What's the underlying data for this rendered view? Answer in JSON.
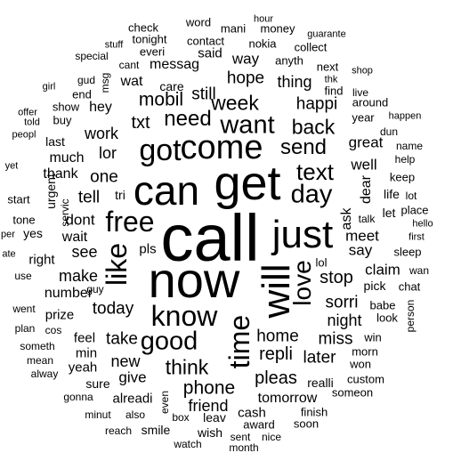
{
  "words": [
    {
      "text": "call",
      "size": 1
    },
    {
      "text": "now",
      "size": 0.82
    },
    {
      "text": "get",
      "size": 0.78
    },
    {
      "text": "can",
      "size": 0.72
    },
    {
      "text": "just",
      "size": 0.6
    },
    {
      "text": "will",
      "size": 0.58
    },
    {
      "text": "come",
      "size": 0.56
    },
    {
      "text": "got",
      "size": 0.48
    },
    {
      "text": "know",
      "size": 0.48
    },
    {
      "text": "free",
      "size": 0.46
    },
    {
      "text": "like",
      "size": 0.46
    },
    {
      "text": "time",
      "size": 0.46
    },
    {
      "text": "good",
      "size": 0.42
    },
    {
      "text": "want",
      "size": 0.42
    },
    {
      "text": "day",
      "size": 0.42
    },
    {
      "text": "love",
      "size": 0.42
    },
    {
      "text": "text",
      "size": 0.4
    },
    {
      "text": "send",
      "size": 0.36
    },
    {
      "text": "need",
      "size": 0.34
    },
    {
      "text": "week",
      "size": 0.34
    },
    {
      "text": "back",
      "size": 0.34
    },
    {
      "text": "think",
      "size": 0.34
    },
    {
      "text": "phone",
      "size": 0.32
    },
    {
      "text": "mobil",
      "size": 0.3
    },
    {
      "text": "txt",
      "size": 0.3
    },
    {
      "text": "stop",
      "size": 0.3
    },
    {
      "text": "repli",
      "size": 0.3
    },
    {
      "text": "pleas",
      "size": 0.3
    },
    {
      "text": "home",
      "size": 0.28
    },
    {
      "text": "one",
      "size": 0.28
    },
    {
      "text": "tell",
      "size": 0.28
    },
    {
      "text": "today",
      "size": 0.28
    },
    {
      "text": "take",
      "size": 0.28
    },
    {
      "text": "still",
      "size": 0.28
    },
    {
      "text": "hope",
      "size": 0.28
    },
    {
      "text": "happi",
      "size": 0.28
    },
    {
      "text": "miss",
      "size": 0.28
    },
    {
      "text": "later",
      "size": 0.28
    },
    {
      "text": "sorri",
      "size": 0.28
    },
    {
      "text": "friend",
      "size": 0.28
    },
    {
      "text": "night",
      "size": 0.27
    },
    {
      "text": "see",
      "size": 0.26
    },
    {
      "text": "make",
      "size": 0.26
    },
    {
      "text": "new",
      "size": 0.26
    },
    {
      "text": "work",
      "size": 0.26
    },
    {
      "text": "lor",
      "size": 0.26
    },
    {
      "text": "thing",
      "size": 0.26
    },
    {
      "text": "say",
      "size": 0.26
    },
    {
      "text": "meet",
      "size": 0.24
    },
    {
      "text": "dont",
      "size": 0.24
    },
    {
      "text": "give",
      "size": 0.24
    },
    {
      "text": "way",
      "size": 0.24
    },
    {
      "text": "great",
      "size": 0.24
    },
    {
      "text": "well",
      "size": 0.24
    },
    {
      "text": "claim",
      "size": 0.24
    },
    {
      "text": "number",
      "size": 0.22
    },
    {
      "text": "messag",
      "size": 0.22
    },
    {
      "text": "hey",
      "size": 0.22
    },
    {
      "text": "wat",
      "size": 0.22
    },
    {
      "text": "wait",
      "size": 0.22
    },
    {
      "text": "much",
      "size": 0.22
    },
    {
      "text": "thank",
      "size": 0.22
    },
    {
      "text": "ask",
      "size": 0.22
    },
    {
      "text": "dear",
      "size": 0.22
    },
    {
      "text": "tomorrow",
      "size": 0.22
    },
    {
      "text": "pls",
      "size": 0.22
    },
    {
      "text": "said",
      "size": 0.2
    },
    {
      "text": "yeah",
      "size": 0.2
    },
    {
      "text": "cash",
      "size": 0.2
    },
    {
      "text": "alreadi",
      "size": 0.2
    },
    {
      "text": "min",
      "size": 0.2
    },
    {
      "text": "feel",
      "size": 0.2
    },
    {
      "text": "prize",
      "size": 0.2
    },
    {
      "text": "right",
      "size": 0.2
    },
    {
      "text": "last",
      "size": 0.18
    },
    {
      "text": "care",
      "size": 0.18
    },
    {
      "text": "pick",
      "size": 0.18
    },
    {
      "text": "realli",
      "size": 0.18
    },
    {
      "text": "wish",
      "size": 0.18
    },
    {
      "text": "smile",
      "size": 0.18
    },
    {
      "text": "leav",
      "size": 0.18
    },
    {
      "text": "sure",
      "size": 0.18
    },
    {
      "text": "tri",
      "size": 0.18
    },
    {
      "text": "urgent",
      "size": 0.18
    },
    {
      "text": "let",
      "size": 0.18
    },
    {
      "text": "life",
      "size": 0.18
    },
    {
      "text": "yes",
      "size": 0.18
    },
    {
      "text": "babe",
      "size": 0.16
    },
    {
      "text": "custom",
      "size": 0.16
    },
    {
      "text": "morn",
      "size": 0.16
    },
    {
      "text": "contact",
      "size": 0.16
    },
    {
      "text": "lol",
      "size": 0.16
    },
    {
      "text": "win",
      "size": 0.16
    },
    {
      "text": "look",
      "size": 0.16
    },
    {
      "text": "won",
      "size": 0.16
    },
    {
      "text": "award",
      "size": 0.16
    },
    {
      "text": "keep",
      "size": 0.16
    },
    {
      "text": "place",
      "size": 0.16
    },
    {
      "text": "sleep",
      "size": 0.16
    },
    {
      "text": "someon",
      "size": 0.16
    },
    {
      "text": "finish",
      "size": 0.16
    },
    {
      "text": "soon",
      "size": 0.16
    },
    {
      "text": "word",
      "size": 0.16
    },
    {
      "text": "money",
      "size": 0.16
    },
    {
      "text": "check",
      "size": 0.16
    },
    {
      "text": "tonight",
      "size": 0.16
    },
    {
      "text": "everi",
      "size": 0.16
    },
    {
      "text": "mani",
      "size": 0.16
    },
    {
      "text": "nokia",
      "size": 0.16
    },
    {
      "text": "anyth",
      "size": 0.16
    },
    {
      "text": "collect",
      "size": 0.16
    },
    {
      "text": "next",
      "size": 0.16
    },
    {
      "text": "find",
      "size": 0.16
    },
    {
      "text": "year",
      "size": 0.16
    },
    {
      "text": "around",
      "size": 0.16
    },
    {
      "text": "start",
      "size": 0.16
    },
    {
      "text": "tone",
      "size": 0.16
    },
    {
      "text": "buy",
      "size": 0.16
    },
    {
      "text": "show",
      "size": 0.16
    },
    {
      "text": "end",
      "size": 0.16
    },
    {
      "text": "chat",
      "size": 0.16
    },
    {
      "text": "talk",
      "size": 0.15
    },
    {
      "text": "servic",
      "size": 0.15
    },
    {
      "text": "also",
      "size": 0.15
    },
    {
      "text": "minut",
      "size": 0.15
    },
    {
      "text": "gonna",
      "size": 0.15
    },
    {
      "text": "alway",
      "size": 0.15
    },
    {
      "text": "mean",
      "size": 0.15
    },
    {
      "text": "someth",
      "size": 0.15
    },
    {
      "text": "plan",
      "size": 0.15
    },
    {
      "text": "went",
      "size": 0.15
    },
    {
      "text": "use",
      "size": 0.15
    },
    {
      "text": "cos",
      "size": 0.15
    },
    {
      "text": "guy",
      "size": 0.15
    },
    {
      "text": "box",
      "size": 0.15
    },
    {
      "text": "even",
      "size": 0.15
    },
    {
      "text": "reach",
      "size": 0.14
    },
    {
      "text": "watch",
      "size": 0.15
    },
    {
      "text": "sent",
      "size": 0.15
    },
    {
      "text": "nice",
      "size": 0.15
    },
    {
      "text": "month",
      "size": 0.14
    },
    {
      "text": "person",
      "size": 0.14
    },
    {
      "text": "name",
      "size": 0.14
    },
    {
      "text": "help",
      "size": 0.14
    },
    {
      "text": "lot",
      "size": 0.14
    },
    {
      "text": "hello",
      "size": 0.13
    },
    {
      "text": "first",
      "size": 0.13
    },
    {
      "text": "wan",
      "size": 0.14
    },
    {
      "text": "dun",
      "size": 0.14
    },
    {
      "text": "happen",
      "size": 0.13
    },
    {
      "text": "live",
      "size": 0.14
    },
    {
      "text": "thk",
      "size": 0.13
    },
    {
      "text": "shop",
      "size": 0.13
    },
    {
      "text": "guarante",
      "size": 0.13
    },
    {
      "text": "hour",
      "size": 0.13
    },
    {
      "text": "stuff",
      "size": 0.13
    },
    {
      "text": "special",
      "size": 0.14
    },
    {
      "text": "cant",
      "size": 0.14
    },
    {
      "text": "gud",
      "size": 0.14
    },
    {
      "text": "msg",
      "size": 0.14
    },
    {
      "text": "girl",
      "size": 0.13
    },
    {
      "text": "offer",
      "size": 0.13
    },
    {
      "text": "told",
      "size": 0.13
    },
    {
      "text": "peopl",
      "size": 0.13
    },
    {
      "text": "yet",
      "size": 0.13
    },
    {
      "text": "per",
      "size": 0.13
    },
    {
      "text": "ate",
      "size": 0.13
    }
  ]
}
